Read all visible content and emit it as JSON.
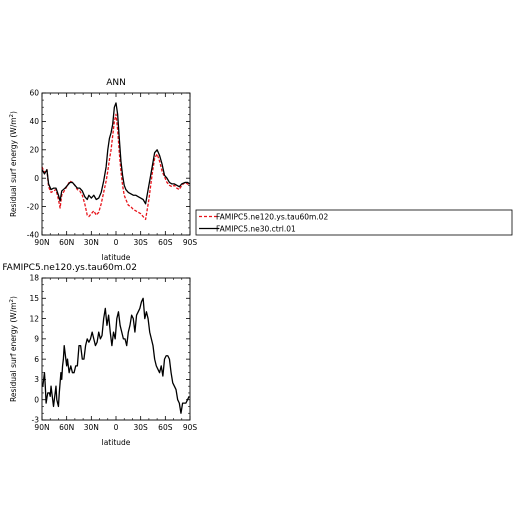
{
  "chart_data": [
    {
      "type": "line",
      "title": "ANN",
      "xlabel": "latitude",
      "ylabel": "Residual surf energy (W/m²)",
      "xlim": [
        90,
        -90
      ],
      "ylim": [
        -40,
        60
      ],
      "yticks": [
        -40,
        -20,
        0,
        20,
        40,
        60
      ],
      "xticks": [
        {
          "value": 90,
          "label": "90N"
        },
        {
          "value": 60,
          "label": "60N"
        },
        {
          "value": 30,
          "label": "30N"
        },
        {
          "value": 0,
          "label": "0"
        },
        {
          "value": -30,
          "label": "30S"
        },
        {
          "value": -60,
          "label": "60S"
        },
        {
          "value": -90,
          "label": "90S"
        }
      ],
      "legend": "right",
      "series": [
        {
          "name": "FAMIPC5.ne120.ys.tau60m.02",
          "color": "#e8131a",
          "dash": "dashed",
          "x": [
            90,
            87,
            84,
            82,
            79,
            76,
            73,
            70,
            68,
            66,
            64,
            62,
            59,
            56,
            53,
            50,
            47,
            44,
            41,
            38,
            35,
            33,
            30,
            27,
            24,
            21,
            18,
            15,
            12,
            10,
            8,
            6,
            4,
            2,
            0,
            -2,
            -4,
            -6,
            -8,
            -10,
            -12,
            -15,
            -18,
            -21,
            -24,
            -27,
            -30,
            -33,
            -36,
            -40,
            -44,
            -47,
            -50,
            -53,
            -56,
            -59,
            -62,
            -65,
            -68,
            -71,
            -74,
            -77,
            -80,
            -84,
            -87,
            -90
          ],
          "y": [
            8,
            4,
            6,
            -6,
            -10,
            -9,
            -8,
            -15,
            -21,
            -12,
            -10,
            -8,
            -5,
            -2,
            -3,
            -5,
            -8,
            -9,
            -12,
            -18,
            -26,
            -27,
            -25,
            -23,
            -26,
            -24,
            -18,
            -10,
            -2,
            5,
            13,
            20,
            30,
            40,
            45,
            34,
            18,
            5,
            -5,
            -12,
            -15,
            -19,
            -20,
            -22,
            -23,
            -24,
            -25,
            -27,
            -29,
            -15,
            3,
            14,
            17,
            12,
            5,
            1,
            -3,
            -5,
            -6,
            -5,
            -7,
            -8,
            -5,
            -3,
            -4,
            -5
          ]
        },
        {
          "name": "FAMIPC5.ne30.ctrl.01",
          "color": "#000000",
          "dash": "solid",
          "x": [
            90,
            87,
            84,
            82,
            79,
            76,
            73,
            70,
            68,
            66,
            64,
            62,
            59,
            56,
            53,
            50,
            47,
            44,
            41,
            38,
            35,
            33,
            30,
            27,
            24,
            21,
            18,
            15,
            12,
            10,
            8,
            6,
            4,
            2,
            0,
            -2,
            -4,
            -6,
            -8,
            -10,
            -12,
            -15,
            -18,
            -21,
            -24,
            -27,
            -30,
            -33,
            -36,
            -40,
            -44,
            -47,
            -50,
            -53,
            -56,
            -59,
            -62,
            -65,
            -68,
            -71,
            -74,
            -77,
            -80,
            -84,
            -87,
            -90
          ],
          "y": [
            6,
            3,
            6,
            -4,
            -8,
            -7,
            -7,
            -12,
            -16,
            -9,
            -8,
            -7,
            -5,
            -3,
            -3,
            -5,
            -7,
            -7,
            -9,
            -13,
            -15,
            -12,
            -14,
            -12,
            -15,
            -14,
            -10,
            -2,
            8,
            20,
            28,
            32,
            38,
            50,
            53,
            45,
            28,
            12,
            2,
            -5,
            -8,
            -10,
            -11,
            -12,
            -12,
            -13,
            -14,
            -15,
            -18,
            -5,
            8,
            18,
            20,
            16,
            10,
            2,
            0,
            -3,
            -4,
            -4,
            -5,
            -6,
            -4,
            -3,
            -3,
            -4
          ]
        }
      ]
    },
    {
      "type": "line",
      "title": "FAMIPC5.ne120.ys.tau60m.02",
      "xlabel": "latitude",
      "ylabel": "Residual surf energy (W/m²)",
      "xlim": [
        90,
        -90
      ],
      "ylim": [
        -3,
        18
      ],
      "yticks": [
        -3,
        0,
        3,
        6,
        9,
        12,
        15,
        18
      ],
      "xticks": [
        {
          "value": 90,
          "label": "90N"
        },
        {
          "value": 60,
          "label": "60N"
        },
        {
          "value": 30,
          "label": "30N"
        },
        {
          "value": 0,
          "label": "0"
        },
        {
          "value": -30,
          "label": "30S"
        },
        {
          "value": -60,
          "label": "60S"
        },
        {
          "value": -90,
          "label": "90S"
        }
      ],
      "series": [
        {
          "color": "#000000",
          "dash": "solid",
          "x": [
            90,
            89,
            88,
            87,
            86,
            85,
            84,
            83,
            81,
            80,
            79,
            77,
            76,
            75,
            74,
            73,
            72,
            70,
            69,
            67,
            66,
            65,
            64,
            63,
            62,
            60,
            59,
            57,
            55,
            53,
            51,
            49,
            47,
            45,
            43,
            41,
            39,
            37,
            35,
            33,
            31,
            29,
            27,
            25,
            23,
            21,
            19,
            17,
            15,
            13,
            11,
            9,
            7,
            5,
            3,
            1,
            -1,
            -3,
            -5,
            -7,
            -9,
            -11,
            -13,
            -15,
            -17,
            -19,
            -21,
            -23,
            -25,
            -27,
            -29,
            -31,
            -33,
            -35,
            -37,
            -39,
            -41,
            -43,
            -45,
            -47,
            -49,
            -51,
            -53,
            -55,
            -57,
            -59,
            -61,
            -63,
            -65,
            -67,
            -69,
            -71,
            -73,
            -75,
            -77,
            -79,
            -81,
            -83,
            -85,
            -87,
            -89
          ],
          "y": [
            2,
            2,
            3,
            4,
            2,
            -0.5,
            0.3,
            1,
            1,
            0.5,
            2,
            0,
            -1,
            0,
            1,
            2,
            0,
            -1,
            1,
            4,
            3,
            5,
            6,
            8,
            7,
            5,
            6,
            4,
            5,
            4,
            4,
            5,
            5,
            8,
            8,
            6,
            6,
            8,
            9,
            8.5,
            9,
            10,
            9,
            8,
            8.5,
            10,
            9,
            9.5,
            12,
            13.5,
            11,
            12.5,
            10,
            8,
            10,
            9,
            12,
            13,
            11,
            10,
            9,
            9,
            8,
            10,
            11,
            12.5,
            12,
            10,
            12.5,
            13,
            13.5,
            14.5,
            15,
            12,
            13,
            12,
            10,
            9,
            8,
            6,
            5,
            4.5,
            4,
            5,
            3.5,
            6,
            6.5,
            6.5,
            6,
            4,
            2.5,
            2,
            1.5,
            0,
            -0.5,
            -2,
            -0.5,
            -0.5,
            -0.5,
            0,
            0.5
          ]
        }
      ]
    }
  ]
}
